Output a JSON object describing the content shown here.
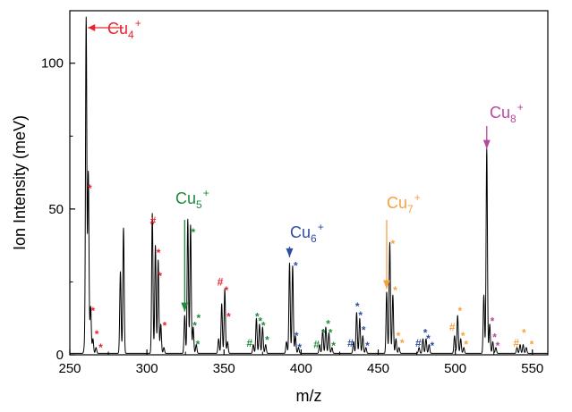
{
  "chart_data": {
    "type": "line",
    "xlabel": "m/z",
    "ylabel": "Ion Intensity (meV)",
    "xlim": [
      250,
      560
    ],
    "ylim": [
      0,
      118
    ],
    "xticks": [
      250,
      300,
      350,
      400,
      450,
      500,
      550
    ],
    "yticks": [
      0,
      50,
      100
    ],
    "grid": false,
    "legend": "none",
    "line_color": "#000000",
    "peaks": [
      {
        "x": 259.5,
        "y": 2
      },
      {
        "x": 260.6,
        "y": 115
      },
      {
        "x": 262.0,
        "y": 62
      },
      {
        "x": 263.5,
        "y": 16
      },
      {
        "x": 265.0,
        "y": 5
      },
      {
        "x": 267.0,
        "y": 2
      },
      {
        "x": 282.8,
        "y": 28
      },
      {
        "x": 284.8,
        "y": 43
      },
      {
        "x": 303.5,
        "y": 48
      },
      {
        "x": 305.5,
        "y": 37
      },
      {
        "x": 307.3,
        "y": 32
      },
      {
        "x": 309.0,
        "y": 10
      },
      {
        "x": 311.0,
        "y": 2
      },
      {
        "x": 324.5,
        "y": 13
      },
      {
        "x": 326.5,
        "y": 46
      },
      {
        "x": 328.3,
        "y": 44
      },
      {
        "x": 330.0,
        "y": 9
      },
      {
        "x": 332.0,
        "y": 3
      },
      {
        "x": 346.5,
        "y": 5
      },
      {
        "x": 348.5,
        "y": 17
      },
      {
        "x": 350.5,
        "y": 22
      },
      {
        "x": 352.3,
        "y": 4
      },
      {
        "x": 369.0,
        "y": 3
      },
      {
        "x": 371.0,
        "y": 12
      },
      {
        "x": 373.0,
        "y": 10
      },
      {
        "x": 375.0,
        "y": 9
      },
      {
        "x": 377.0,
        "y": 3
      },
      {
        "x": 390.5,
        "y": 4
      },
      {
        "x": 392.5,
        "y": 31
      },
      {
        "x": 394.5,
        "y": 30
      },
      {
        "x": 396.3,
        "y": 6
      },
      {
        "x": 398.3,
        "y": 2
      },
      {
        "x": 412.0,
        "y": 3
      },
      {
        "x": 414.0,
        "y": 8
      },
      {
        "x": 416.0,
        "y": 9
      },
      {
        "x": 418.0,
        "y": 7
      },
      {
        "x": 420.0,
        "y": 2
      },
      {
        "x": 434.0,
        "y": 4
      },
      {
        "x": 436.0,
        "y": 14
      },
      {
        "x": 438.0,
        "y": 12
      },
      {
        "x": 440.0,
        "y": 6
      },
      {
        "x": 442.0,
        "y": 2
      },
      {
        "x": 455.5,
        "y": 21
      },
      {
        "x": 457.5,
        "y": 38
      },
      {
        "x": 459.5,
        "y": 20
      },
      {
        "x": 461.5,
        "y": 5
      },
      {
        "x": 463.5,
        "y": 2
      },
      {
        "x": 476.5,
        "y": 2
      },
      {
        "x": 479.0,
        "y": 5
      },
      {
        "x": 481.0,
        "y": 5
      },
      {
        "x": 483.0,
        "y": 3
      },
      {
        "x": 499.5,
        "y": 6
      },
      {
        "x": 501.5,
        "y": 13
      },
      {
        "x": 503.5,
        "y": 5
      },
      {
        "x": 505.5,
        "y": 2
      },
      {
        "x": 518.5,
        "y": 20
      },
      {
        "x": 520.4,
        "y": 70
      },
      {
        "x": 522.3,
        "y": 10
      },
      {
        "x": 524.3,
        "y": 4
      },
      {
        "x": 526.3,
        "y": 2
      },
      {
        "x": 540.0,
        "y": 2
      },
      {
        "x": 542.0,
        "y": 3
      },
      {
        "x": 544.0,
        "y": 3
      },
      {
        "x": 546.0,
        "y": 2
      }
    ],
    "ion_labels": [
      {
        "base": "Cu",
        "sub": "4",
        "sup": "+",
        "color": "#e8232d",
        "peak_x": 260.6,
        "arrow": "left"
      },
      {
        "base": "Cu",
        "sub": "5",
        "sup": "+",
        "color": "#1e8a3c",
        "peak_x": 324.5,
        "arrow": "down"
      },
      {
        "base": "Cu",
        "sub": "6",
        "sup": "+",
        "color": "#2e4ea1",
        "peak_x": 392.5,
        "arrow": "down"
      },
      {
        "base": "Cu",
        "sub": "7",
        "sup": "+",
        "color": "#f7a040",
        "peak_x": 455.5,
        "arrow": "down"
      },
      {
        "base": "Cu",
        "sub": "8",
        "sup": "+",
        "color": "#b9479b",
        "peak_x": 520.4,
        "arrow": "down"
      }
    ],
    "markers": [
      {
        "x": 263.0,
        "y": 57,
        "symbol": "*",
        "color": "#e8232d"
      },
      {
        "x": 265.0,
        "y": 15,
        "symbol": "*",
        "color": "#e8232d"
      },
      {
        "x": 267.5,
        "y": 7,
        "symbol": "*",
        "color": "#e8232d"
      },
      {
        "x": 270.0,
        "y": 2.5,
        "symbol": "*",
        "color": "#e8232d"
      },
      {
        "x": 304.0,
        "y": 46,
        "symbol": "#",
        "color": "#e8232d"
      },
      {
        "x": 307.5,
        "y": 35,
        "symbol": "*",
        "color": "#e8232d"
      },
      {
        "x": 308.5,
        "y": 27,
        "symbol": "*",
        "color": "#e8232d"
      },
      {
        "x": 311.5,
        "y": 10,
        "symbol": "*",
        "color": "#e8232d"
      },
      {
        "x": 347.5,
        "y": 25,
        "symbol": "#",
        "color": "#e8232d"
      },
      {
        "x": 351.5,
        "y": 22,
        "symbol": "*",
        "color": "#e8232d"
      },
      {
        "x": 353.0,
        "y": 13,
        "symbol": "*",
        "color": "#e8232d"
      },
      {
        "x": 330.0,
        "y": 42,
        "symbol": "*",
        "color": "#1e8a3c"
      },
      {
        "x": 331.0,
        "y": 10,
        "symbol": "*",
        "color": "#1e8a3c"
      },
      {
        "x": 333.5,
        "y": 12.5,
        "symbol": "*",
        "color": "#1e8a3c"
      },
      {
        "x": 333.0,
        "y": 3.5,
        "symbol": "*",
        "color": "#1e8a3c"
      },
      {
        "x": 366.5,
        "y": 4,
        "symbol": "#",
        "color": "#1e8a3c"
      },
      {
        "x": 371.5,
        "y": 13,
        "symbol": "*",
        "color": "#1e8a3c"
      },
      {
        "x": 373.5,
        "y": 11.5,
        "symbol": "*",
        "color": "#1e8a3c"
      },
      {
        "x": 375.5,
        "y": 10,
        "symbol": "*",
        "color": "#1e8a3c"
      },
      {
        "x": 378.0,
        "y": 5,
        "symbol": "*",
        "color": "#1e8a3c"
      },
      {
        "x": 410.0,
        "y": 3.5,
        "symbol": "#",
        "color": "#1e8a3c"
      },
      {
        "x": 414.5,
        "y": 7.5,
        "symbol": "*",
        "color": "#1e8a3c"
      },
      {
        "x": 417.5,
        "y": 10.5,
        "symbol": "*",
        "color": "#1e8a3c"
      },
      {
        "x": 419.0,
        "y": 7.5,
        "symbol": "*",
        "color": "#1e8a3c"
      },
      {
        "x": 421.0,
        "y": 3,
        "symbol": "*",
        "color": "#1e8a3c"
      },
      {
        "x": 396.5,
        "y": 30.5,
        "symbol": "*",
        "color": "#2e4ea1"
      },
      {
        "x": 397.0,
        "y": 6.5,
        "symbol": "*",
        "color": "#2e4ea1"
      },
      {
        "x": 399.0,
        "y": 2.5,
        "symbol": "*",
        "color": "#2e4ea1"
      },
      {
        "x": 432.0,
        "y": 4,
        "symbol": "#",
        "color": "#2e4ea1"
      },
      {
        "x": 436.5,
        "y": 16.5,
        "symbol": "*",
        "color": "#2e4ea1"
      },
      {
        "x": 438.5,
        "y": 13.5,
        "symbol": "*",
        "color": "#2e4ea1"
      },
      {
        "x": 440.5,
        "y": 8.5,
        "symbol": "*",
        "color": "#2e4ea1"
      },
      {
        "x": 443.0,
        "y": 3,
        "symbol": "*",
        "color": "#2e4ea1"
      },
      {
        "x": 476.0,
        "y": 4,
        "symbol": "#",
        "color": "#2e4ea1"
      },
      {
        "x": 480.5,
        "y": 7.5,
        "symbol": "*",
        "color": "#2e4ea1"
      },
      {
        "x": 482.5,
        "y": 5.5,
        "symbol": "*",
        "color": "#2e4ea1"
      },
      {
        "x": 485.0,
        "y": 3,
        "symbol": "*",
        "color": "#2e4ea1"
      },
      {
        "x": 459.5,
        "y": 38,
        "symbol": "*",
        "color": "#f7a040"
      },
      {
        "x": 461.0,
        "y": 22,
        "symbol": "*",
        "color": "#f7a040"
      },
      {
        "x": 463.0,
        "y": 6.5,
        "symbol": "*",
        "color": "#f7a040"
      },
      {
        "x": 465.5,
        "y": 4,
        "symbol": "*",
        "color": "#f7a040"
      },
      {
        "x": 498.0,
        "y": 9.5,
        "symbol": "#",
        "color": "#f7a040"
      },
      {
        "x": 503.0,
        "y": 15,
        "symbol": "*",
        "color": "#f7a040"
      },
      {
        "x": 505.0,
        "y": 6.5,
        "symbol": "*",
        "color": "#f7a040"
      },
      {
        "x": 507.0,
        "y": 3.5,
        "symbol": "*",
        "color": "#f7a040"
      },
      {
        "x": 539.5,
        "y": 4,
        "symbol": "#",
        "color": "#f7a040"
      },
      {
        "x": 544.5,
        "y": 7.5,
        "symbol": "*",
        "color": "#f7a040"
      },
      {
        "x": 549.5,
        "y": 3.5,
        "symbol": "*",
        "color": "#f7a040"
      },
      {
        "x": 524.0,
        "y": 11.5,
        "symbol": "*",
        "color": "#b9479b"
      },
      {
        "x": 525.5,
        "y": 6,
        "symbol": "*",
        "color": "#b9479b"
      },
      {
        "x": 527.5,
        "y": 3,
        "symbol": "*",
        "color": "#b9479b"
      }
    ]
  }
}
